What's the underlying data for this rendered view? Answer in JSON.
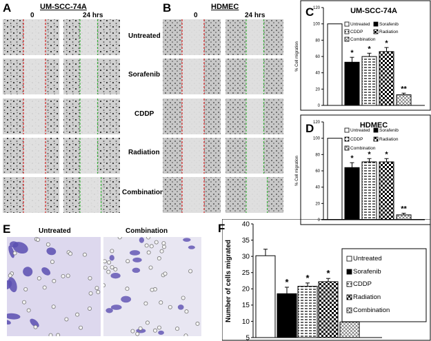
{
  "panels": {
    "a": {
      "label": "A",
      "title": "UM-SCC-74A",
      "col0": "0",
      "col1": "24 hrs"
    },
    "b": {
      "label": "B",
      "title": "HDMEC",
      "col0": "0",
      "col1": "24 hrs"
    },
    "c": {
      "label": "C"
    },
    "d": {
      "label": "D"
    },
    "e": {
      "label": "E",
      "left_title": "Untreated",
      "right_title": "Combination"
    },
    "f": {
      "label": "F"
    }
  },
  "row_labels": [
    "Untreated",
    "Sorafenib",
    "CDDP",
    "Radiation",
    "Combination"
  ],
  "colors": {
    "red_line": "#d42020",
    "green_line": "#3ab03a",
    "stain": "#5b4fb0"
  },
  "chart_data": [
    {
      "id": "C",
      "type": "bar",
      "title": "UM-SCC-74A",
      "ylabel": "% Cell migration",
      "ylim": [
        0,
        120
      ],
      "yticks": [
        0,
        20,
        40,
        60,
        80,
        100,
        120
      ],
      "categories": [
        "Untreated",
        "Sorafenib",
        "CDDP",
        "Radiation",
        "Combination"
      ],
      "values": [
        100,
        53,
        60,
        66,
        13
      ],
      "errors": [
        0,
        6,
        4,
        5,
        2
      ],
      "marks": [
        "",
        "*",
        "*",
        "*",
        "**"
      ],
      "legend": [
        "Untreated",
        "Sorafenib",
        "CDDP",
        "Radiation",
        "Combination"
      ],
      "legend_position": "top-right"
    },
    {
      "id": "D",
      "type": "bar",
      "title": "HDMEC",
      "ylabel": "% Cell migration",
      "ylim": [
        0,
        120
      ],
      "yticks": [
        0,
        20,
        40,
        60,
        80,
        100,
        120
      ],
      "categories": [
        "Untreated",
        "Sorafenib",
        "CDDP",
        "Radiation",
        "Combination"
      ],
      "values": [
        100,
        64,
        71,
        71,
        6
      ],
      "errors": [
        0,
        6,
        4,
        4,
        2
      ],
      "marks": [
        "",
        "*",
        "*",
        "*",
        "**"
      ],
      "legend": [
        "Untreated",
        "Sorafenib",
        "CDDP",
        "Radiation",
        "Combination"
      ],
      "legend_position": "top-right"
    },
    {
      "id": "F",
      "type": "bar",
      "ylabel": "Number of cells migrated",
      "ylim": [
        5,
        40
      ],
      "yticks": [
        5,
        10,
        15,
        20,
        25,
        30,
        35,
        40
      ],
      "categories": [
        "Untreated",
        "Sorafenib",
        "CDDP",
        "Radiation",
        "Combination"
      ],
      "values": [
        30.2,
        18.5,
        20.8,
        22.2,
        9.8
      ],
      "errors": [
        2,
        2,
        1,
        1,
        1
      ],
      "marks": [
        "",
        "*",
        "*",
        "*",
        "**"
      ],
      "legend": [
        "Untreated",
        "Sorafenib",
        "CDDP",
        "Radiation",
        "Combination"
      ],
      "legend_position": "right"
    }
  ]
}
